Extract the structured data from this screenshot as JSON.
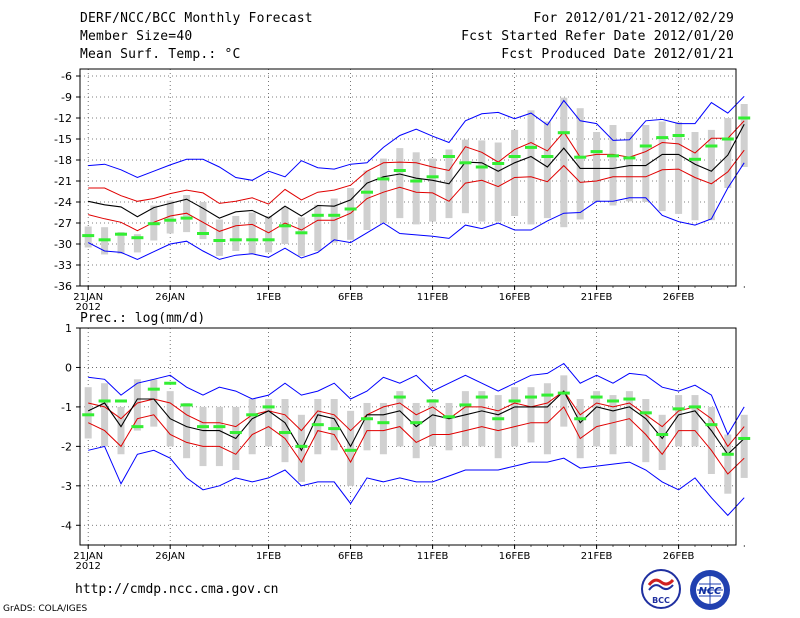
{
  "header": {
    "title": "DERF/NCC/BCC Monthly Forecast",
    "member_size": "Member Size=40",
    "variable": "Mean Surf. Temp.: °C",
    "period": "For 2012/01/21-2012/02/29",
    "started": "Fcst Started Refer Date 2012/01/20",
    "produced": "Fcst Produced Date 2012/01/21"
  },
  "footer": {
    "url": "http://cmdp.ncc.cma.gov.cn",
    "grads": "GrADS: COLA/IGES",
    "logo_left": "BCC",
    "logo_right": "NCC"
  },
  "colors": {
    "envelope": "#0000ff",
    "spread": "#e00000",
    "mean": "#000000",
    "box": "#d0d0d0",
    "observed": "#33ee33"
  },
  "chart_data": [
    {
      "type": "line",
      "title": "Mean Surf. Temp.: °C",
      "x_tick_labels": [
        "21JAN",
        "26JAN",
        "1FEB",
        "6FEB",
        "11FEB",
        "16FEB",
        "21FEB",
        "26FEB"
      ],
      "x_tick_days": [
        1,
        6,
        12,
        17,
        22,
        27,
        32,
        37
      ],
      "year_label": "2012",
      "ylim": [
        -36,
        -5
      ],
      "yticks": [
        -6,
        -9,
        -12,
        -15,
        -18,
        -21,
        -24,
        -27,
        -30,
        -33,
        -36
      ],
      "days": 40,
      "series": [
        {
          "name": "max",
          "values": [
            -18.8,
            -18.6,
            -19.4,
            -20.5,
            -19.6,
            -18.7,
            -17.9,
            -17.9,
            -19.0,
            -20.5,
            -20.9,
            -19.6,
            -20.4,
            -18.1,
            -19.1,
            -19.3,
            -18.6,
            -18.4,
            -16.2,
            -14.5,
            -13.6,
            -14.6,
            -15.5,
            -12.4,
            -11.4,
            -11.2,
            -12.1,
            -11.3,
            -13.0,
            -9.5,
            -12.4,
            -12.8,
            -15.2,
            -15.1,
            -12.4,
            -12.2,
            -12.8,
            -12.8,
            -9.8,
            -11.3,
            -8.9
          ]
        },
        {
          "name": "upper",
          "values": [
            -22.0,
            -22.0,
            -23.1,
            -23.9,
            -23.5,
            -22.8,
            -22.3,
            -22.7,
            -24.2,
            -23.9,
            -23.4,
            -24.3,
            -22.2,
            -23.7,
            -22.6,
            -22.3,
            -21.6,
            -19.6,
            -18.4,
            -18.3,
            -18.4,
            -19.0,
            -19.5,
            -16.1,
            -16.9,
            -18.3,
            -16.5,
            -15.5,
            -16.7,
            -14.0,
            -17.6,
            -17.2,
            -17.2,
            -17.6,
            -16.8,
            -15.5,
            -15.7,
            -17.0,
            -14.9,
            -14.9,
            -12.4
          ]
        },
        {
          "name": "mean",
          "values": [
            -23.9,
            -24.4,
            -24.7,
            -26.1,
            -24.8,
            -24.2,
            -23.6,
            -24.9,
            -26.3,
            -25.4,
            -25.2,
            -26.3,
            -24.6,
            -26.0,
            -24.5,
            -24.6,
            -23.7,
            -21.3,
            -20.4,
            -20.0,
            -20.6,
            -20.9,
            -21.4,
            -18.3,
            -18.4,
            -19.6,
            -18.4,
            -17.5,
            -19.0,
            -16.3,
            -19.2,
            -19.2,
            -19.2,
            -18.8,
            -18.8,
            -17.2,
            -17.2,
            -18.6,
            -19.6,
            -17.3,
            -12.9
          ]
        },
        {
          "name": "lower",
          "values": [
            -25.8,
            -26.4,
            -26.9,
            -28.1,
            -26.9,
            -26.0,
            -25.6,
            -26.9,
            -28.2,
            -27.4,
            -27.2,
            -28.4,
            -27.0,
            -28.0,
            -26.6,
            -26.6,
            -25.6,
            -23.5,
            -22.6,
            -21.9,
            -22.6,
            -22.7,
            -23.9,
            -21.3,
            -20.9,
            -21.8,
            -20.5,
            -20.4,
            -21.1,
            -18.8,
            -21.2,
            -21.0,
            -20.4,
            -20.4,
            -20.4,
            -19.4,
            -19.3,
            -20.5,
            -21.4,
            -19.7,
            -16.6
          ]
        },
        {
          "name": "min",
          "values": [
            -29.8,
            -31.0,
            -31.2,
            -32.2,
            -31.1,
            -30.0,
            -29.6,
            -31.0,
            -32.2,
            -31.6,
            -31.4,
            -31.9,
            -30.6,
            -32.0,
            -31.2,
            -29.4,
            -29.8,
            -28.4,
            -27.0,
            -28.5,
            -28.7,
            -28.9,
            -29.2,
            -27.3,
            -27.8,
            -27.0,
            -28.0,
            -28.0,
            -26.7,
            -25.6,
            -25.5,
            -23.9,
            -23.9,
            -23.4,
            -23.4,
            -25.9,
            -26.8,
            -27.3,
            -26.4,
            -22.0,
            -18.4
          ]
        },
        {
          "name": "observed",
          "values": [
            -28.8,
            -29.4,
            -28.6,
            -29.1,
            -27.1,
            -26.6,
            -26.3,
            -28.5,
            -29.5,
            -29.4,
            -29.4,
            -29.4,
            -27.4,
            -28.4,
            -25.9,
            -25.9,
            -25.0,
            -22.6,
            -20.7,
            -19.5,
            -21.0,
            -20.4,
            -17.5,
            -18.4,
            -19.0,
            -18.5,
            -17.5,
            -16.2,
            -17.5,
            -14.1,
            -17.6,
            -16.8,
            -17.4,
            -17.7,
            -16.0,
            -14.8,
            -14.5,
            -17.9,
            -16.0,
            -15.0,
            -12.0
          ]
        }
      ],
      "box_ranges": [
        [
          -27.5,
          -30.5
        ],
        [
          -27.6,
          -31.5
        ],
        [
          -28.3,
          -31.4
        ],
        [
          -28.6,
          -31.2
        ],
        [
          -24.5,
          -29.5
        ],
        [
          -23.8,
          -28.5
        ],
        [
          -23.0,
          -28.3
        ],
        [
          -24.0,
          -29.3
        ],
        [
          -26.5,
          -31.7
        ],
        [
          -26.0,
          -31.0
        ],
        [
          -25.5,
          -31.4
        ],
        [
          -26.0,
          -31.2
        ],
        [
          -24.7,
          -30.0
        ],
        [
          -26.2,
          -31.7
        ],
        [
          -24.4,
          -31.0
        ],
        [
          -23.5,
          -29.8
        ],
        [
          -22.0,
          -29.4
        ],
        [
          -19.5,
          -28.0
        ],
        [
          -17.8,
          -27.0
        ],
        [
          -16.3,
          -26.3
        ],
        [
          -16.9,
          -27.2
        ],
        [
          -17.8,
          -26.8
        ],
        [
          -16.5,
          -26.3
        ],
        [
          -15.1,
          -25.6
        ],
        [
          -15.2,
          -26.8
        ],
        [
          -15.5,
          -26.8
        ],
        [
          -13.7,
          -26.0
        ],
        [
          -10.9,
          -27.2
        ],
        [
          -12.5,
          -26.3
        ],
        [
          -9.1,
          -27.6
        ],
        [
          -10.6,
          -26.5
        ],
        [
          -14.0,
          -24.0
        ],
        [
          -13.0,
          -24.5
        ],
        [
          -14.0,
          -23.9
        ],
        [
          -13.0,
          -24.0
        ],
        [
          -12.5,
          -25.3
        ],
        [
          -12.6,
          -25.7
        ],
        [
          -14.0,
          -26.6
        ],
        [
          -13.7,
          -26.6
        ],
        [
          -12.0,
          -22.0
        ],
        [
          -10.0,
          -19.0
        ]
      ]
    },
    {
      "type": "line",
      "title": "Prec.: log(mm/d)",
      "x_tick_labels": [
        "21JAN",
        "26JAN",
        "1FEB",
        "6FEB",
        "11FEB",
        "16FEB",
        "21FEB",
        "26FEB"
      ],
      "x_tick_days": [
        1,
        6,
        12,
        17,
        22,
        27,
        32,
        37
      ],
      "year_label": "2012",
      "ylim": [
        -4.5,
        1
      ],
      "yticks": [
        1,
        0,
        -1,
        -2,
        -3,
        -4
      ],
      "days": 40,
      "series": [
        {
          "name": "max",
          "values": [
            -0.25,
            -0.3,
            -0.7,
            -0.4,
            -0.3,
            -0.2,
            -0.5,
            -0.7,
            -0.5,
            -0.6,
            -0.8,
            -0.7,
            -0.4,
            -0.7,
            -0.6,
            -0.4,
            -0.8,
            -0.6,
            -0.25,
            -0.4,
            -0.2,
            -0.6,
            -0.4,
            -0.2,
            -0.4,
            -0.6,
            -0.4,
            -0.2,
            -0.15,
            0.1,
            -0.4,
            -0.2,
            -0.4,
            -0.15,
            -0.2,
            -0.5,
            -0.6,
            -0.45,
            -0.7,
            -1.7,
            -1.0
          ]
        },
        {
          "name": "upper",
          "values": [
            -0.9,
            -1.0,
            -1.3,
            -0.9,
            -0.8,
            -0.9,
            -1.2,
            -1.4,
            -1.4,
            -1.5,
            -1.2,
            -1.1,
            -1.2,
            -1.6,
            -1.1,
            -1.2,
            -1.6,
            -1.2,
            -1.0,
            -0.9,
            -1.2,
            -1.0,
            -1.3,
            -1.0,
            -1.0,
            -1.1,
            -0.9,
            -1.0,
            -0.9,
            -0.6,
            -1.2,
            -0.9,
            -1.0,
            -0.9,
            -1.2,
            -1.5,
            -1.1,
            -1.0,
            -1.3,
            -2.0,
            -1.5
          ]
        },
        {
          "name": "mean",
          "values": [
            -1.1,
            -0.9,
            -1.5,
            -0.8,
            -0.8,
            -1.3,
            -1.5,
            -1.6,
            -1.6,
            -1.8,
            -1.3,
            -1.1,
            -1.4,
            -2.1,
            -1.2,
            -1.3,
            -2.0,
            -1.2,
            -1.2,
            -1.1,
            -1.5,
            -1.2,
            -1.3,
            -1.2,
            -1.1,
            -1.2,
            -1.0,
            -1.0,
            -1.0,
            -0.6,
            -1.4,
            -1.0,
            -1.1,
            -1.0,
            -1.3,
            -1.8,
            -1.2,
            -1.1,
            -1.6,
            -2.2,
            -1.8
          ]
        },
        {
          "name": "lower",
          "values": [
            -1.4,
            -1.6,
            -2.0,
            -1.3,
            -1.2,
            -1.7,
            -1.9,
            -2.0,
            -2.0,
            -2.2,
            -1.7,
            -1.5,
            -1.8,
            -2.4,
            -1.6,
            -1.7,
            -2.4,
            -1.6,
            -1.6,
            -1.5,
            -1.9,
            -1.7,
            -1.7,
            -1.6,
            -1.5,
            -1.6,
            -1.5,
            -1.4,
            -1.4,
            -1.0,
            -1.8,
            -1.5,
            -1.4,
            -1.3,
            -1.7,
            -2.2,
            -1.6,
            -1.6,
            -2.1,
            -2.7,
            -2.3
          ]
        },
        {
          "name": "min",
          "values": [
            -2.1,
            -2.0,
            -2.95,
            -2.2,
            -2.1,
            -2.3,
            -2.8,
            -3.1,
            -3.0,
            -2.8,
            -2.9,
            -2.8,
            -2.6,
            -3.0,
            -2.9,
            -2.9,
            -3.45,
            -2.8,
            -2.9,
            -2.8,
            -2.9,
            -2.9,
            -2.75,
            -2.6,
            -2.6,
            -2.6,
            -2.5,
            -2.4,
            -2.4,
            -2.3,
            -2.55,
            -2.5,
            -2.45,
            -2.4,
            -2.6,
            -2.9,
            -3.1,
            -2.8,
            -3.3,
            -3.75,
            -3.3
          ]
        },
        {
          "name": "observed",
          "values": [
            -1.2,
            -0.85,
            -0.85,
            -1.5,
            -0.55,
            -0.4,
            -0.95,
            -1.5,
            -1.5,
            -1.65,
            -1.2,
            -1.0,
            -1.65,
            -2.0,
            -1.45,
            -1.55,
            -2.1,
            -1.3,
            -1.4,
            -0.75,
            -1.4,
            -0.85,
            -1.25,
            -0.95,
            -0.75,
            -1.3,
            -0.85,
            -0.75,
            -0.7,
            -0.65,
            -1.3,
            -0.75,
            -0.85,
            -0.8,
            -1.15,
            -1.7,
            -1.05,
            -1.0,
            -1.45,
            -2.2,
            -1.8
          ]
        }
      ],
      "box_ranges": [
        [
          -0.5,
          -1.8
        ],
        [
          -0.4,
          -2.0
        ],
        [
          -1.0,
          -2.2
        ],
        [
          -0.3,
          -1.6
        ],
        [
          -0.3,
          -1.5
        ],
        [
          -0.6,
          -2.0
        ],
        [
          -0.9,
          -2.3
        ],
        [
          -1.0,
          -2.5
        ],
        [
          -1.0,
          -2.5
        ],
        [
          -1.0,
          -2.6
        ],
        [
          -0.8,
          -2.2
        ],
        [
          -0.8,
          -2.0
        ],
        [
          -0.8,
          -2.4
        ],
        [
          -1.2,
          -2.9
        ],
        [
          -0.8,
          -2.2
        ],
        [
          -0.8,
          -2.1
        ],
        [
          -1.1,
          -3.0
        ],
        [
          -0.9,
          -2.1
        ],
        [
          -0.9,
          -2.2
        ],
        [
          -0.6,
          -2.0
        ],
        [
          -0.9,
          -2.3
        ],
        [
          -0.8,
          -2.0
        ],
        [
          -0.9,
          -2.1
        ],
        [
          -0.6,
          -2.0
        ],
        [
          -0.6,
          -2.0
        ],
        [
          -0.7,
          -2.3
        ],
        [
          -0.5,
          -2.0
        ],
        [
          -0.5,
          -1.9
        ],
        [
          -0.4,
          -2.2
        ],
        [
          -0.2,
          -1.5
        ],
        [
          -0.8,
          -2.3
        ],
        [
          -0.6,
          -2.0
        ],
        [
          -0.7,
          -2.2
        ],
        [
          -0.6,
          -2.0
        ],
        [
          -0.8,
          -2.4
        ],
        [
          -1.2,
          -2.6
        ],
        [
          -0.7,
          -2.0
        ],
        [
          -0.7,
          -2.0
        ],
        [
          -1.0,
          -2.7
        ],
        [
          -1.7,
          -3.2
        ],
        [
          -1.2,
          -2.8
        ]
      ]
    }
  ]
}
